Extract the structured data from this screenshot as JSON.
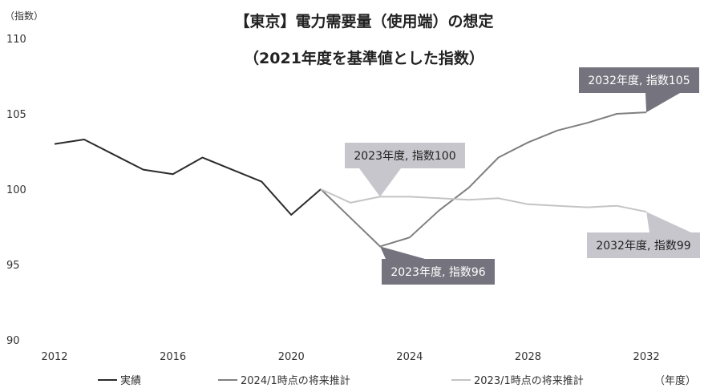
{
  "chart_data": {
    "type": "line",
    "title_line1": "【東京】電力需要量（使用端）の想定",
    "title_line2": "（2021年度を基準値とした指数）",
    "ylabel": "（指数）",
    "xlabel": "（年度）",
    "ylim": [
      90,
      110
    ],
    "yticks": [
      90,
      95,
      100,
      105,
      110
    ],
    "xlim": [
      2012,
      2033
    ],
    "xticks": [
      2012,
      2016,
      2020,
      2024,
      2028,
      2032
    ],
    "grid": false,
    "legend_position": "bottom",
    "series": [
      {
        "name": "実績",
        "color": "#2b2b2b",
        "x": [
          2012,
          2013,
          2014,
          2015,
          2016,
          2017,
          2018,
          2019,
          2020,
          2021
        ],
        "y": [
          103.0,
          103.3,
          102.3,
          101.3,
          101.0,
          102.1,
          101.3,
          100.5,
          98.3,
          100.0
        ]
      },
      {
        "name": "2024/1時点の将来推計",
        "color": "#7f7f7f",
        "x": [
          2021,
          2022,
          2023,
          2024,
          2025,
          2026,
          2027,
          2028,
          2029,
          2030,
          2031,
          2032
        ],
        "y": [
          100.0,
          98.1,
          96.2,
          96.8,
          98.6,
          100.1,
          102.1,
          103.1,
          103.9,
          104.4,
          105.0,
          105.1
        ]
      },
      {
        "name": "2023/1時点の将来推計",
        "color": "#c4c4c4",
        "x": [
          2021,
          2022,
          2023,
          2024,
          2025,
          2026,
          2027,
          2028,
          2029,
          2030,
          2031,
          2032
        ],
        "y": [
          100.0,
          99.1,
          99.5,
          99.5,
          99.4,
          99.3,
          99.4,
          99.0,
          98.9,
          98.8,
          98.9,
          98.5
        ]
      }
    ],
    "annotations": [
      {
        "text": "2032年度, 指数105",
        "x": 2032,
        "y": 105.1,
        "series": 1,
        "style": "dark"
      },
      {
        "text": "2023年度, 指数100",
        "x": 2023,
        "y": 99.5,
        "series": 2,
        "style": "light"
      },
      {
        "text": "2023年度, 指数96",
        "x": 2023,
        "y": 96.2,
        "series": 1,
        "style": "dark"
      },
      {
        "text": "2032年度, 指数99",
        "x": 2032,
        "y": 98.5,
        "series": 2,
        "style": "light"
      }
    ]
  }
}
